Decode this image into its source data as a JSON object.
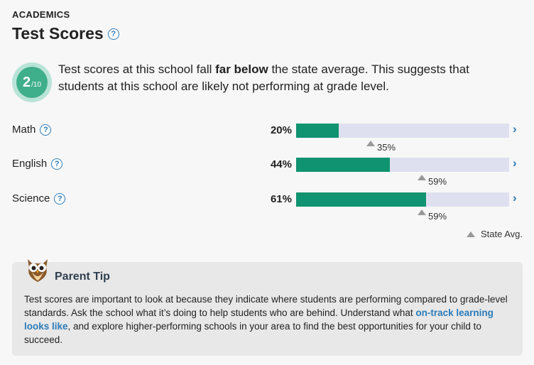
{
  "header": {
    "kicker": "ACADEMICS",
    "title": "Test Scores",
    "help": "?"
  },
  "rating": {
    "value": "2",
    "denominator": "/10",
    "color": "#3fae8a"
  },
  "summary": {
    "before": "Test scores at this school fall ",
    "emphasis": "far below",
    "after": " the state average. This suggests that students at this school are likely not performing at grade level."
  },
  "subjects": [
    {
      "name": "Math",
      "score": 20,
      "score_label": "20%",
      "state_avg": 35,
      "state_label": "35%"
    },
    {
      "name": "English",
      "score": 44,
      "score_label": "44%",
      "state_avg": 59,
      "state_label": "59%"
    },
    {
      "name": "Science",
      "score": 61,
      "score_label": "61%",
      "state_avg": 59,
      "state_label": "59%"
    }
  ],
  "legend": {
    "label": "State Avg."
  },
  "parent_tip": {
    "title": "Parent Tip",
    "body_1": "Test scores are important to look at because they indicate where students are performing compared to grade-level standards. Ask the school what it’s doing to help students who are behind. Understand what ",
    "link": "on-track learning looks like",
    "body_2": ", and explore higher-performing schools in your area to find the best opportunities for your child to succeed."
  },
  "colors": {
    "bar_fill": "#0f9370",
    "bar_track": "#dfe0ef",
    "link": "#2b7bb9"
  },
  "icons": {
    "owl": "owl-icon",
    "chevron": "chevron-right-icon",
    "help": "question-circle-icon",
    "marker": "triangle-up-icon"
  }
}
